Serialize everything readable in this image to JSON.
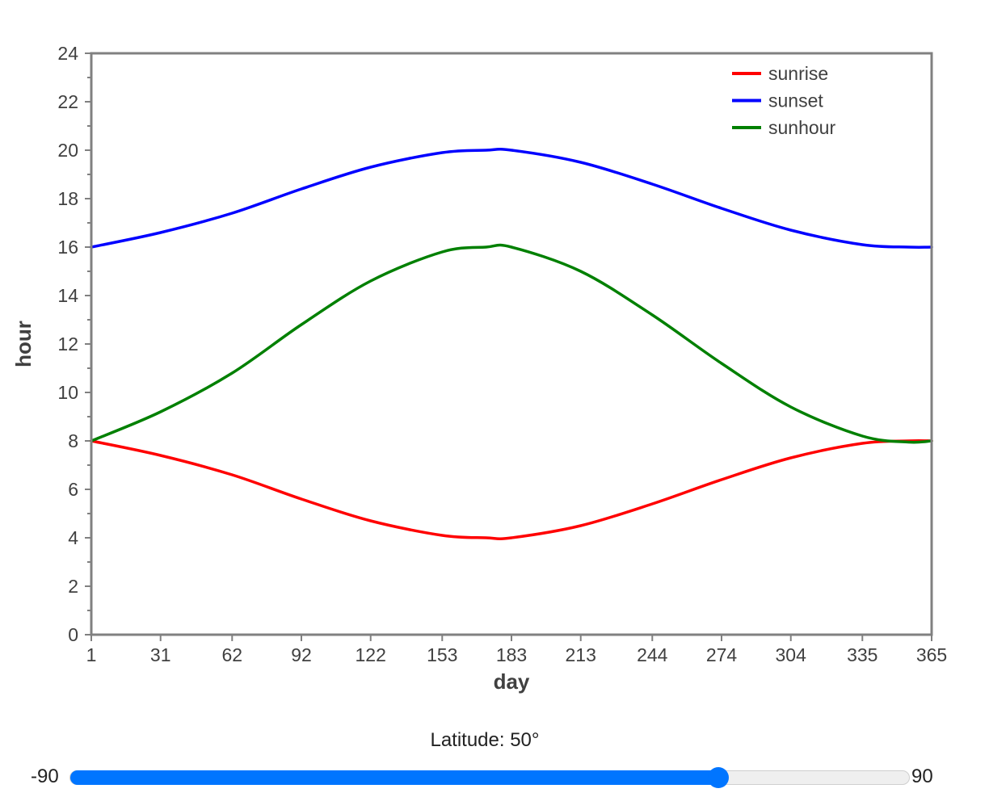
{
  "chart_data": {
    "type": "line",
    "xlabel": "day",
    "ylabel": "hour",
    "xlim": [
      1,
      365
    ],
    "ylim": [
      0,
      24
    ],
    "x_ticks": [
      "1",
      "31",
      "62",
      "92",
      "122",
      "153",
      "183",
      "213",
      "244",
      "274",
      "304",
      "335",
      "365"
    ],
    "y_ticks": [
      "0",
      "2",
      "4",
      "6",
      "8",
      "10",
      "12",
      "14",
      "16",
      "18",
      "20",
      "22",
      "24"
    ],
    "legend_position": "top-right",
    "grid": false,
    "x": [
      1,
      31,
      62,
      92,
      122,
      153,
      172,
      183,
      213,
      244,
      274,
      304,
      335,
      355,
      365
    ],
    "series": [
      {
        "name": "sunrise",
        "color": "#ff0000",
        "values": [
          8.0,
          7.4,
          6.6,
          5.6,
          4.7,
          4.1,
          4.0,
          4.0,
          4.5,
          5.4,
          6.4,
          7.3,
          7.9,
          8.0,
          8.0
        ]
      },
      {
        "name": "sunset",
        "color": "#0000ff",
        "values": [
          16.0,
          16.6,
          17.4,
          18.4,
          19.3,
          19.9,
          20.0,
          20.0,
          19.5,
          18.6,
          17.6,
          16.7,
          16.1,
          16.0,
          16.0
        ]
      },
      {
        "name": "sunhour",
        "color": "#008000",
        "values": [
          8.0,
          9.2,
          10.8,
          12.8,
          14.6,
          15.8,
          16.0,
          16.0,
          15.0,
          13.2,
          11.2,
          9.4,
          8.2,
          7.95,
          8.0
        ]
      }
    ]
  },
  "slider": {
    "label": "Latitude: 50°",
    "min_label": "-90",
    "max_label": "90",
    "min": -90,
    "max": 90,
    "value": 50,
    "color": "#0075ff"
  }
}
